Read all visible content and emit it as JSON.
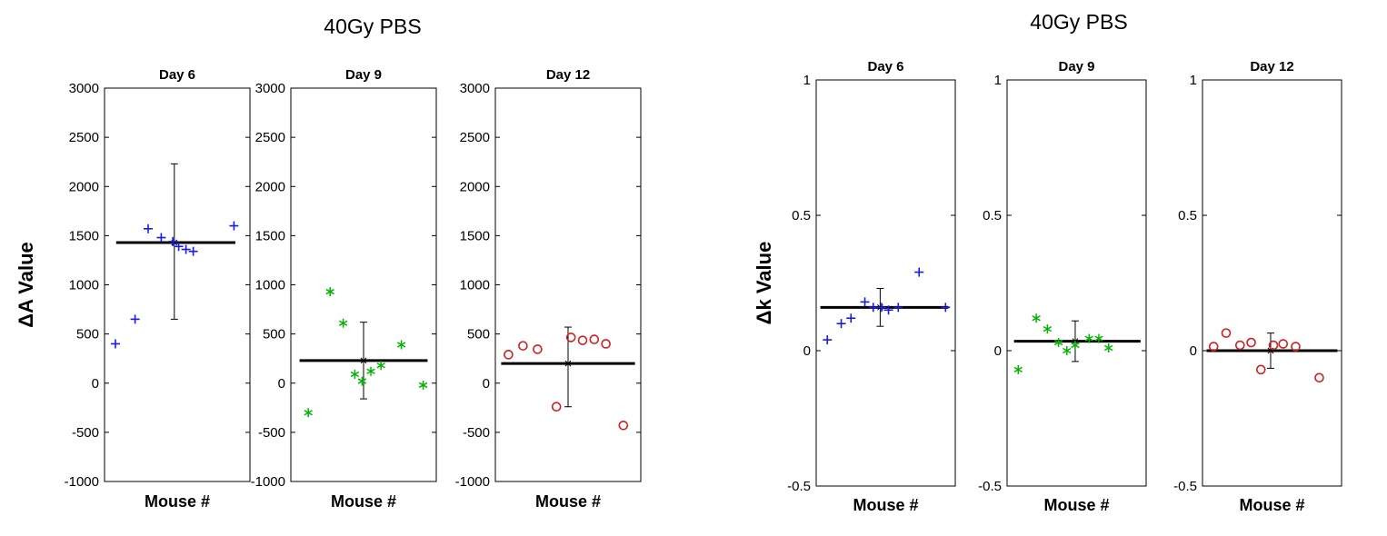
{
  "page": {
    "background": "#ffffff"
  },
  "chart_data": [
    {
      "type": "scatter",
      "title": "40Gy PBS",
      "ylabel": "ΔA Value",
      "xlabel": "Mouse #",
      "ylim": [
        -1000,
        3000
      ],
      "yticks": [
        3000,
        2500,
        2000,
        1500,
        1000,
        500,
        0,
        -500,
        -1000
      ],
      "grid": false,
      "legend": false,
      "panels": [
        {
          "label": "Day 6",
          "marker": "plus",
          "color": "#1a1ae6",
          "points": [
            [
              0.075,
              400
            ],
            [
              0.21,
              650
            ],
            [
              0.3,
              1570
            ],
            [
              0.39,
              1480
            ],
            [
              0.47,
              1440
            ],
            [
              0.51,
              1390
            ],
            [
              0.56,
              1360
            ],
            [
              0.61,
              1340
            ],
            [
              0.89,
              1600
            ]
          ],
          "mean": 1430,
          "err_low": 650,
          "err_high": 2230,
          "err_x": 0.48,
          "mean_span": [
            0.08,
            0.9
          ]
        },
        {
          "label": "Day 9",
          "marker": "asterisk",
          "color": "#00b400",
          "points": [
            [
              0.12,
              -300
            ],
            [
              0.27,
              930
            ],
            [
              0.36,
              610
            ],
            [
              0.44,
              90
            ],
            [
              0.49,
              20
            ],
            [
              0.55,
              120
            ],
            [
              0.62,
              180
            ],
            [
              0.76,
              390
            ],
            [
              0.91,
              -20
            ]
          ],
          "mean": 230,
          "err_low": -160,
          "err_high": 620,
          "err_x": 0.5,
          "mean_span": [
            0.06,
            0.94
          ]
        },
        {
          "label": "Day 12",
          "marker": "circle",
          "color": "#d02020",
          "points": [
            [
              0.09,
              290
            ],
            [
              0.19,
              380
            ],
            [
              0.29,
              345
            ],
            [
              0.42,
              -240
            ],
            [
              0.52,
              465
            ],
            [
              0.6,
              435
            ],
            [
              0.68,
              445
            ],
            [
              0.76,
              400
            ],
            [
              0.88,
              -430
            ]
          ],
          "mean": 200,
          "err_low": -240,
          "err_high": 570,
          "err_x": 0.5,
          "mean_span": [
            0.04,
            0.96
          ]
        }
      ]
    },
    {
      "type": "scatter",
      "title": "40Gy PBS",
      "ylabel": "Δk Value",
      "xlabel": "Mouse #",
      "ylim": [
        -0.5,
        1
      ],
      "yticks": [
        1,
        0.5,
        0,
        -0.5
      ],
      "grid": false,
      "legend": false,
      "panels": [
        {
          "label": "Day 6",
          "marker": "plus",
          "color": "#1a1ae6",
          "points": [
            [
              0.08,
              0.04
            ],
            [
              0.18,
              0.1
            ],
            [
              0.25,
              0.12
            ],
            [
              0.35,
              0.18
            ],
            [
              0.41,
              0.16
            ],
            [
              0.47,
              0.16
            ],
            [
              0.52,
              0.15
            ],
            [
              0.59,
              0.16
            ],
            [
              0.74,
              0.29
            ],
            [
              0.93,
              0.16
            ]
          ],
          "mean": 0.16,
          "err_low": 0.09,
          "err_high": 0.23,
          "err_x": 0.46,
          "mean_span": [
            0.03,
            0.95
          ]
        },
        {
          "label": "Day 9",
          "marker": "asterisk",
          "color": "#00b400",
          "points": [
            [
              0.08,
              -0.07
            ],
            [
              0.21,
              0.12
            ],
            [
              0.29,
              0.08
            ],
            [
              0.37,
              0.03
            ],
            [
              0.43,
              0.0
            ],
            [
              0.49,
              0.02
            ],
            [
              0.59,
              0.045
            ],
            [
              0.66,
              0.045
            ],
            [
              0.73,
              0.01
            ]
          ],
          "mean": 0.035,
          "err_low": -0.04,
          "err_high": 0.11,
          "err_x": 0.49,
          "mean_span": [
            0.05,
            0.96
          ]
        },
        {
          "label": "Day 12",
          "marker": "circle",
          "color": "#d02020",
          "points": [
            [
              0.08,
              0.015
            ],
            [
              0.17,
              0.065
            ],
            [
              0.27,
              0.02
            ],
            [
              0.35,
              0.03
            ],
            [
              0.42,
              -0.07
            ],
            [
              0.51,
              0.02
            ],
            [
              0.58,
              0.025
            ],
            [
              0.67,
              0.015
            ],
            [
              0.84,
              -0.1
            ]
          ],
          "mean": 0.0,
          "err_low": -0.065,
          "err_high": 0.065,
          "err_x": 0.49,
          "mean_span": [
            0.03,
            0.97
          ]
        }
      ]
    }
  ]
}
